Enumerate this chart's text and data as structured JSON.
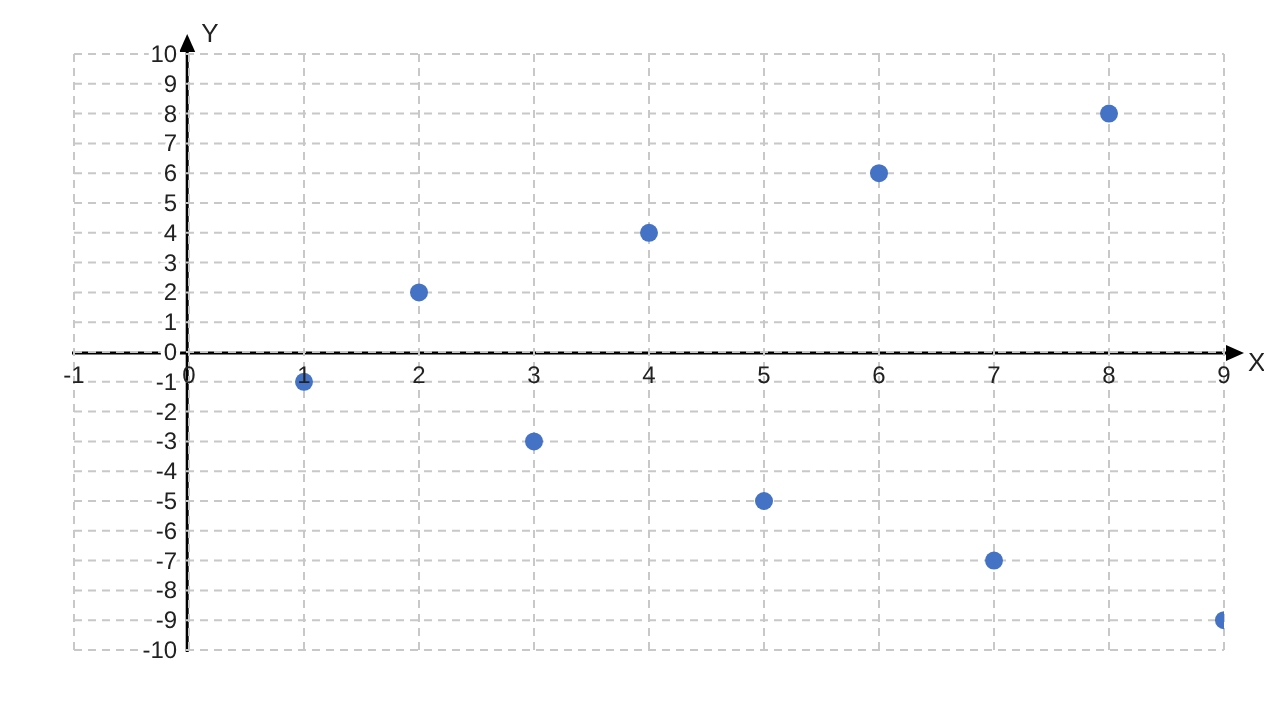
{
  "chart_data": {
    "type": "scatter",
    "xlabel": "X",
    "ylabel": "Y",
    "x": [
      1,
      2,
      3,
      4,
      5,
      6,
      7,
      8,
      9
    ],
    "series": [
      {
        "color": "#4472c4",
        "values": [
          -1,
          2,
          -3,
          4,
          -5,
          6,
          -7,
          8,
          -9
        ]
      }
    ],
    "xlim": [
      -1,
      9
    ],
    "xticks": [
      -1,
      0,
      1,
      2,
      3,
      4,
      5,
      6,
      7,
      8,
      9
    ],
    "ylim": [
      -10,
      10
    ],
    "yticks": [
      -10,
      -9,
      -8,
      -7,
      -6,
      -5,
      -4,
      -3,
      -2,
      -1,
      0,
      1,
      2,
      3,
      4,
      5,
      6,
      7,
      8,
      9,
      10
    ],
    "grid": true,
    "marker": "circle"
  }
}
